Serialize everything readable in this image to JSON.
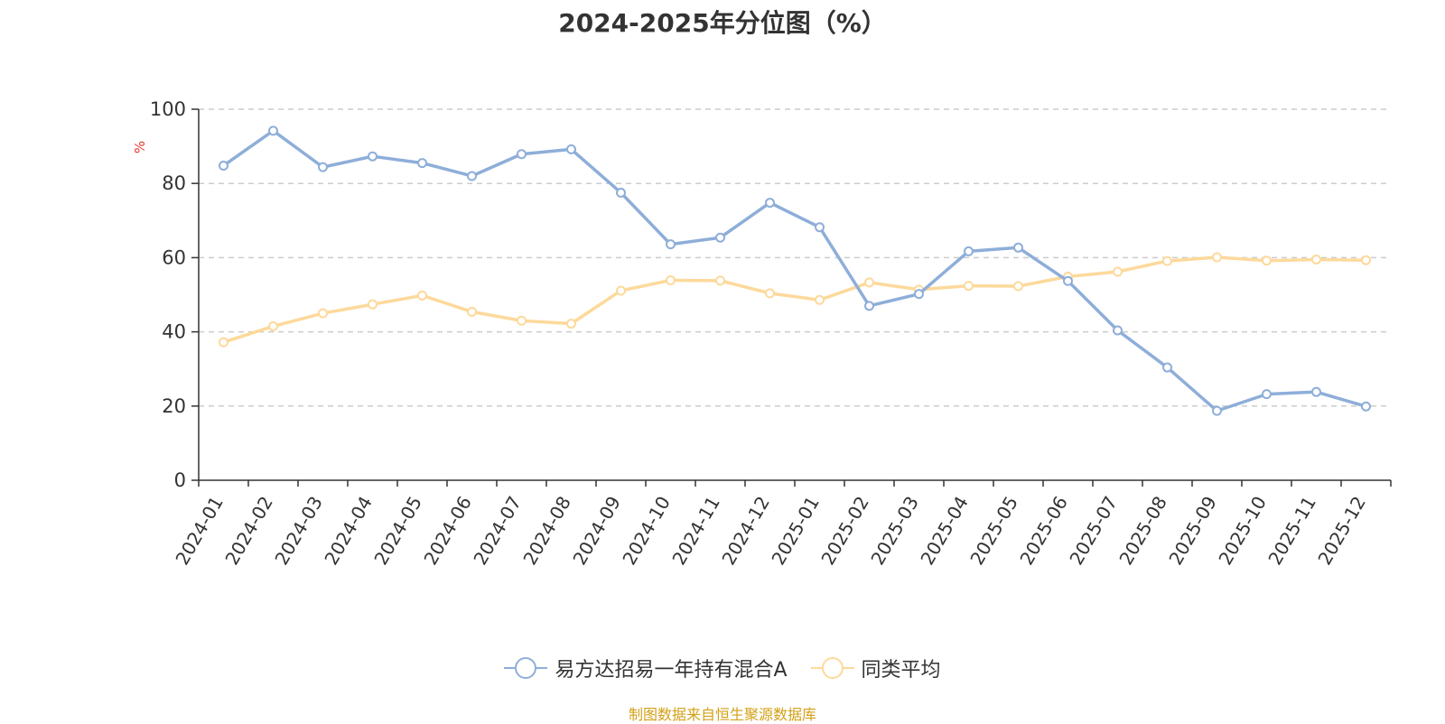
{
  "chart_data": {
    "type": "line",
    "title": "2024-2025年分位图（%）",
    "ylabel": "%",
    "ylim": [
      0,
      100
    ],
    "yticks": [
      "0",
      "20",
      "40",
      "60",
      "80",
      "100"
    ],
    "grid": true,
    "legend_position": "bottom",
    "categories": [
      "2024-01",
      "2024-02",
      "2024-03",
      "2024-04",
      "2024-05",
      "2024-06",
      "2024-07",
      "2024-08",
      "2024-09",
      "2024-10",
      "2024-11",
      "2024-12",
      "2025-01",
      "2025-02",
      "2025-03",
      "2025-04",
      "2025-05",
      "2025-06",
      "2025-07",
      "2025-08",
      "2025-09",
      "2025-10",
      "2025-11",
      "2025-12"
    ],
    "series": [
      {
        "name": "易方达招易一年持有混合A",
        "color": "#8eaed9",
        "values": [
          84.8,
          94.2,
          84.4,
          87.3,
          85.5,
          82.0,
          87.9,
          89.2,
          77.5,
          63.6,
          65.4,
          74.8,
          68.2,
          47.0,
          50.2,
          61.7,
          62.7,
          53.7,
          40.4,
          30.4,
          18.7,
          23.2,
          23.8,
          19.9
        ]
      },
      {
        "name": "同类平均",
        "color": "#fdd99b",
        "values": [
          37.2,
          41.5,
          45.0,
          47.4,
          49.8,
          45.4,
          43.0,
          42.2,
          51.1,
          53.9,
          53.8,
          50.4,
          48.6,
          53.3,
          51.4,
          52.4,
          52.3,
          54.9,
          56.2,
          59.1,
          60.1,
          59.2,
          59.5,
          59.3
        ]
      }
    ]
  },
  "source": "制图数据来自恒生聚源数据库"
}
